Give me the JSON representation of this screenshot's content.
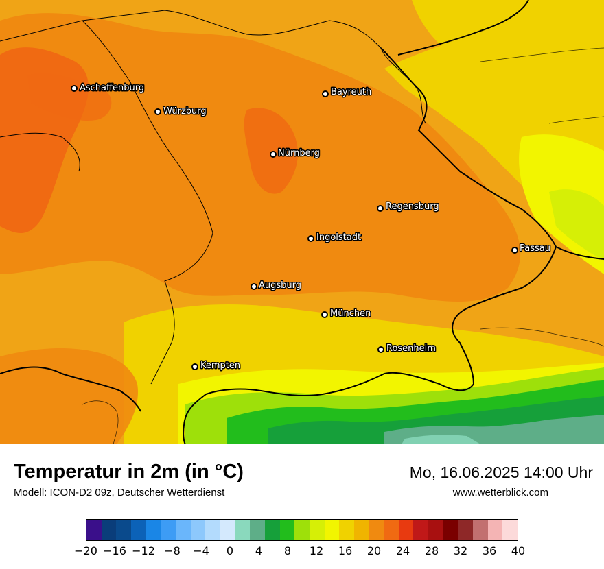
{
  "title": "Temperatur in 2m (in °C)",
  "model": "Modell: ICON-D2 09z, Deutscher Wetterdienst",
  "datetime": "Mo, 16.06.2025 14:00 Uhr",
  "site": "www.wetterblick.com",
  "cities": [
    {
      "name": "Aschaffenburg"
    },
    {
      "name": "Würzburg"
    },
    {
      "name": "Bayreuth"
    },
    {
      "name": "Nürnberg"
    },
    {
      "name": "Regensburg"
    },
    {
      "name": "Ingolstadt"
    },
    {
      "name": "Passau"
    },
    {
      "name": "Augsburg"
    },
    {
      "name": "München"
    },
    {
      "name": "Rosenheim"
    },
    {
      "name": "Kempten"
    }
  ],
  "colorbar": {
    "min": -20,
    "max": 40,
    "step": 2,
    "tick_labels": [
      "−20",
      "−16",
      "−12",
      "−8",
      "−4",
      "0",
      "4",
      "8",
      "12",
      "16",
      "20",
      "24",
      "28",
      "32",
      "36",
      "40"
    ],
    "colors": [
      "#3a0f8a",
      "#0a3d7a",
      "#0a4a8c",
      "#0c62b8",
      "#1a86e6",
      "#3d9cf5",
      "#6ab6fb",
      "#8dc8fc",
      "#b3dbfd",
      "#d4e9fd",
      "#8ad9bd",
      "#5eae88",
      "#16a03a",
      "#22bd1c",
      "#9ee00a",
      "#d6ef06",
      "#f2f500",
      "#f0d200",
      "#f0b400",
      "#f08a10",
      "#f06a12",
      "#e83a10",
      "#c01818",
      "#a81010",
      "#7a0000",
      "#8e2828",
      "#c27070",
      "#f4b4b4",
      "#fcdada"
    ]
  },
  "colors": {
    "land_base": "#f0a416",
    "warm": "#f08a10",
    "hot": "#f06a12",
    "cool": "#f0d200",
    "alps_green": "#22bd1c",
    "alps_light": "#9ee00a"
  }
}
